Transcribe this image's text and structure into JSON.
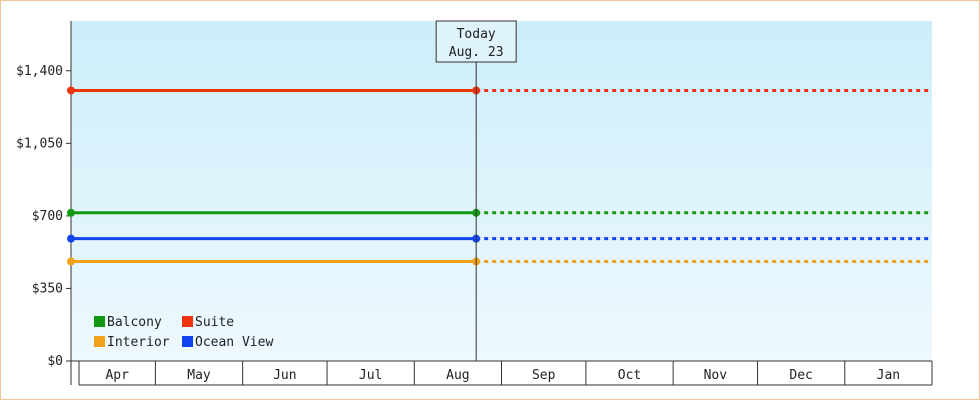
{
  "chart_data": {
    "type": "line",
    "title": "",
    "xlabel": "",
    "ylabel": "",
    "ylim": [
      0,
      1640
    ],
    "y_ticks": [
      {
        "value": 0,
        "label": "$0"
      },
      {
        "value": 350,
        "label": "$350"
      },
      {
        "value": 700,
        "label": "$700"
      },
      {
        "value": 1050,
        "label": "$1,050"
      },
      {
        "value": 1400,
        "label": "$1,400"
      }
    ],
    "months": [
      "Apr",
      "May",
      "Jun",
      "Jul",
      "Aug",
      "Sep",
      "Oct",
      "Nov",
      "Dec",
      "Jan"
    ],
    "x_start": "2024-04-01",
    "x_end": "2025-01-31",
    "today": {
      "date": "2024-08-23",
      "label_line1": "Today",
      "label_line2": "Aug. 23"
    },
    "series": [
      {
        "name": "Balcony",
        "color": "#119911",
        "values": [
          {
            "x": "2024-04-01",
            "y": 715
          },
          {
            "x": "2024-08-23",
            "y": 715
          }
        ],
        "forecast_to": "2025-01-31"
      },
      {
        "name": "Suite",
        "color": "#ee3311",
        "values": [
          {
            "x": "2024-04-01",
            "y": 1305
          },
          {
            "x": "2024-08-23",
            "y": 1305
          }
        ],
        "forecast_to": "2025-01-31"
      },
      {
        "name": "Interior",
        "color": "#f2a21a",
        "values": [
          {
            "x": "2024-04-01",
            "y": 480
          },
          {
            "x": "2024-08-23",
            "y": 480
          }
        ],
        "forecast_to": "2025-01-31"
      },
      {
        "name": "Ocean View",
        "color": "#1144ee",
        "values": [
          {
            "x": "2024-04-01",
            "y": 590
          },
          {
            "x": "2024-08-23",
            "y": 590
          }
        ],
        "forecast_to": "2025-01-31"
      }
    ],
    "legend_position": "bottom-left",
    "grid": false
  }
}
